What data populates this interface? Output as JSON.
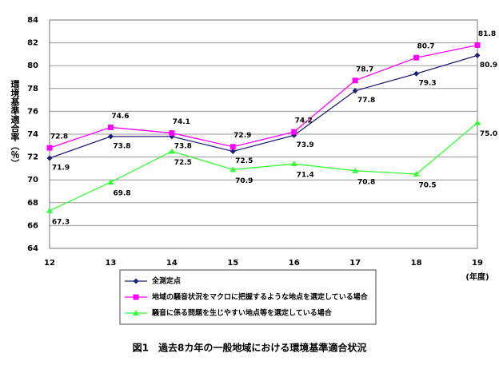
{
  "chart_data": {
    "type": "line",
    "title": "図1　過去8カ年の一般地域における環境基準適合状況",
    "y_label": "環境基準適合率（％）",
    "x_label": "(年度)",
    "categories": [
      "12",
      "13",
      "14",
      "15",
      "16",
      "17",
      "18",
      "19"
    ],
    "ylim": [
      64,
      84
    ],
    "yticks": [
      64,
      66,
      68,
      70,
      72,
      74,
      76,
      78,
      80,
      82,
      84
    ],
    "grid": true,
    "series": [
      {
        "name": "全測定点",
        "color": "#1f1f7a",
        "marker": "diamond",
        "values": [
          71.9,
          73.8,
          73.8,
          72.5,
          73.9,
          77.8,
          79.3,
          80.9
        ]
      },
      {
        "name": "地域の騒音状況をマクロに把握するような地点を選定している場合",
        "color": "#ff00ff",
        "marker": "square",
        "values": [
          72.8,
          74.6,
          74.1,
          72.9,
          74.2,
          78.7,
          80.7,
          81.8
        ]
      },
      {
        "name": "騒音に係る問題を生じやすい地点等を選定している場合",
        "color": "#33ff33",
        "marker": "triangle",
        "values": [
          67.3,
          69.8,
          72.5,
          70.9,
          71.4,
          70.8,
          70.5,
          75
        ],
        "value_labels": [
          "67.3",
          "69.8",
          "72.5",
          "70.9",
          "71.4",
          "70.8",
          "70.5",
          "75.0"
        ]
      }
    ]
  }
}
